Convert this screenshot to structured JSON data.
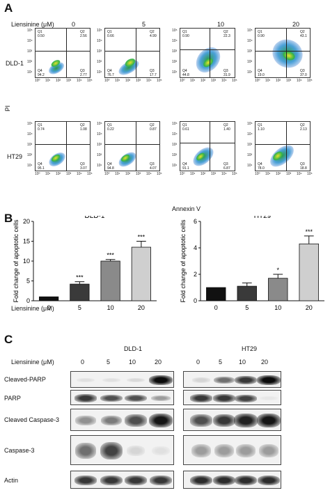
{
  "panel_a": {
    "letter": "A",
    "treatment_label": "Liensinine (μM)",
    "concentrations": [
      "0",
      "5",
      "10",
      "20"
    ],
    "row_labels": [
      "DLD-1",
      "HT29"
    ],
    "y_axis": "PI",
    "x_axis": "Annexin V",
    "facs": [
      [
        {
          "q1": "0.50",
          "q2": "2.56",
          "q3": "2.77",
          "q4": "94.2"
        },
        {
          "q1": "0.66",
          "q2": "4.99",
          "q3": "17.7",
          "q4": "76.7"
        },
        {
          "q1": "0.90",
          "q2": "22.3",
          "q3": "31.9",
          "q4": "44.8"
        },
        {
          "q1": "0.90",
          "q2": "43.1",
          "q3": "37.0",
          "q4": "19.0"
        }
      ],
      [
        {
          "q1": "0.74",
          "q2": "1.08",
          "q3": "3.07",
          "q4": "95.1"
        },
        {
          "q1": "0.22",
          "q2": "0.87",
          "q3": "4.07",
          "q4": "94.8"
        },
        {
          "q1": "0.61",
          "q2": "1.40",
          "q3": "6.87",
          "q4": "91.1"
        },
        {
          "q1": "1.10",
          "q2": "2.13",
          "q3": "18.8",
          "q4": "78.0"
        }
      ]
    ]
  },
  "panel_b": {
    "letter": "B",
    "treatment_label": "Liensinine (μM)",
    "ylabel": "Fold change of apoptotic cells",
    "colors": [
      "#111111",
      "#3a3a3a",
      "#8a8a8a",
      "#cfcfcf"
    ]
  },
  "chart_data": [
    {
      "type": "bar",
      "title": "DLD-1",
      "categories": [
        "0",
        "5",
        "10",
        "20"
      ],
      "values": [
        1,
        4.2,
        10,
        13.5
      ],
      "errors": [
        0,
        0.6,
        0.4,
        1.5
      ],
      "significance": [
        "",
        "***",
        "***",
        "***"
      ],
      "ylabel": "Fold change of apoptotic cells",
      "ylim": [
        0,
        20
      ],
      "yticks": [
        "0",
        "5",
        "10",
        "15",
        "20"
      ]
    },
    {
      "type": "bar",
      "title": "HT29",
      "categories": [
        "0",
        "5",
        "10",
        "20"
      ],
      "values": [
        1,
        1.1,
        1.7,
        4.3
      ],
      "errors": [
        0,
        0.25,
        0.3,
        0.6
      ],
      "significance": [
        "",
        "",
        "*",
        "***"
      ],
      "ylabel": "Fold change of apoptotic cells",
      "ylim": [
        0,
        6
      ],
      "yticks": [
        "0",
        "2",
        "4",
        "6"
      ]
    }
  ],
  "panel_c": {
    "letter": "C",
    "treatment_label": "Liensinine (μM)",
    "cell_lines": [
      "DLD-1",
      "HT29"
    ],
    "concentrations": [
      "0",
      "5",
      "10",
      "20"
    ],
    "proteins": [
      "Cleaved-PARP",
      "PARP",
      "Cleaved Caspase-3",
      "Caspase-3",
      "Actin"
    ],
    "intensity_note": "band darkness 0-1 per lane",
    "dld1_bands": [
      [
        0.05,
        0.05,
        0.08,
        1.0
      ],
      [
        0.8,
        0.7,
        0.7,
        0.35
      ],
      [
        0.4,
        0.5,
        0.7,
        0.95
      ],
      [
        0.55,
        0.75,
        0.1,
        0.05
      ],
      [
        0.8,
        0.8,
        0.8,
        0.8
      ]
    ],
    "ht29_bands": [
      [
        0.1,
        0.55,
        0.8,
        1.0
      ],
      [
        0.8,
        0.8,
        0.75,
        0.02
      ],
      [
        0.7,
        0.8,
        0.9,
        0.95
      ],
      [
        0.35,
        0.35,
        0.35,
        0.35
      ],
      [
        0.85,
        0.85,
        0.85,
        0.85
      ]
    ]
  }
}
